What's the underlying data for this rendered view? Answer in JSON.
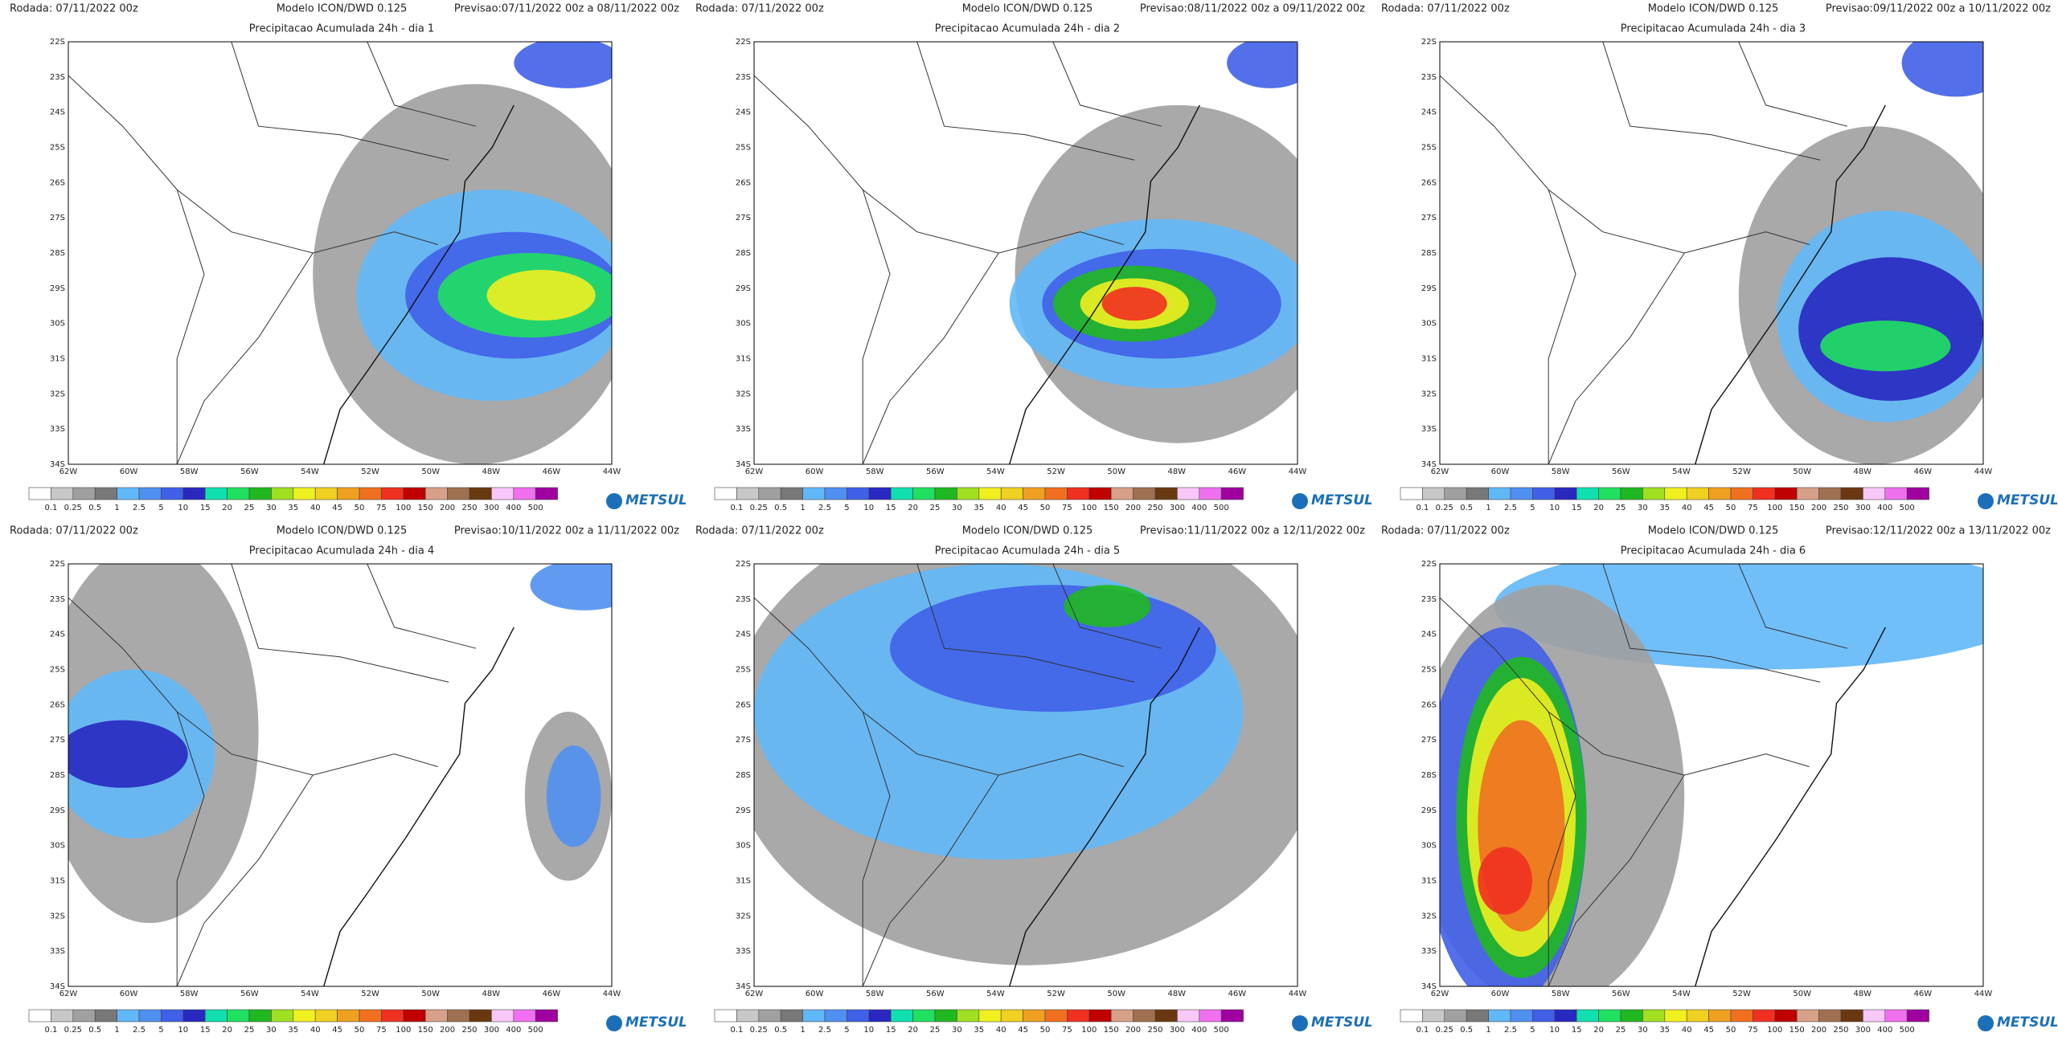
{
  "panels": [
    {
      "rodada": "Rodada: 07/11/2022 00z",
      "modelo": "Modelo ICON/DWD 0.125",
      "previsao": "Previsao:07/11/2022 00z a 08/11/2022 00z",
      "title": "Precipitacao Acumulada 24h - dia 1"
    },
    {
      "rodada": "Rodada: 07/11/2022 00z",
      "modelo": "Modelo ICON/DWD 0.125",
      "previsao": "Previsao:08/11/2022 00z a 09/11/2022 00z",
      "title": "Precipitacao Acumulada 24h - dia 2"
    },
    {
      "rodada": "Rodada: 07/11/2022 00z",
      "modelo": "Modelo ICON/DWD 0.125",
      "previsao": "Previsao:09/11/2022 00z a 10/11/2022 00z",
      "title": "Precipitacao Acumulada 24h - dia 3"
    },
    {
      "rodada": "Rodada: 07/11/2022 00z",
      "modelo": "Modelo ICON/DWD 0.125",
      "previsao": "Previsao:10/11/2022 00z a 11/11/2022 00z",
      "title": "Precipitacao Acumulada 24h - dia 4"
    },
    {
      "rodada": "Rodada: 07/11/2022 00z",
      "modelo": "Modelo ICON/DWD 0.125",
      "previsao": "Previsao:11/11/2022 00z a 12/11/2022 00z",
      "title": "Precipitacao Acumulada 24h - dia 5"
    },
    {
      "rodada": "Rodada: 07/11/2022 00z",
      "modelo": "Modelo ICON/DWD 0.125",
      "previsao": "Previsao:12/11/2022 00z a 13/11/2022 00z",
      "title": "Precipitacao Acumulada 24h - dia 6"
    }
  ],
  "lat_labels": [
    "22S",
    "23S",
    "24S",
    "25S",
    "26S",
    "27S",
    "28S",
    "29S",
    "30S",
    "31S",
    "32S",
    "33S",
    "34S"
  ],
  "lon_labels": [
    "62W",
    "60W",
    "58W",
    "56W",
    "54W",
    "52W",
    "50W",
    "48W",
    "46W",
    "44W"
  ],
  "colorbar": {
    "labels": [
      "0.1",
      "0.25",
      "0.5",
      "1",
      "2.5",
      "5",
      "10",
      "15",
      "20",
      "25",
      "30",
      "35",
      "40",
      "45",
      "50",
      "75",
      "100",
      "150",
      "200",
      "250",
      "300",
      "400",
      "500"
    ],
    "colors": [
      "#ffffff",
      "#c8c8c8",
      "#a0a0a0",
      "#787878",
      "#60b8f8",
      "#5090f0",
      "#4060e8",
      "#2828c0",
      "#10e0b0",
      "#20e060",
      "#20b820",
      "#a0e020",
      "#f0f020",
      "#f0d020",
      "#f0a020",
      "#f07020",
      "#f03020",
      "#c00000",
      "#d8a088",
      "#a07050",
      "#6a3810",
      "#f8c8f8",
      "#f070f0",
      "#a000a0"
    ]
  },
  "logo": "METSUL"
}
